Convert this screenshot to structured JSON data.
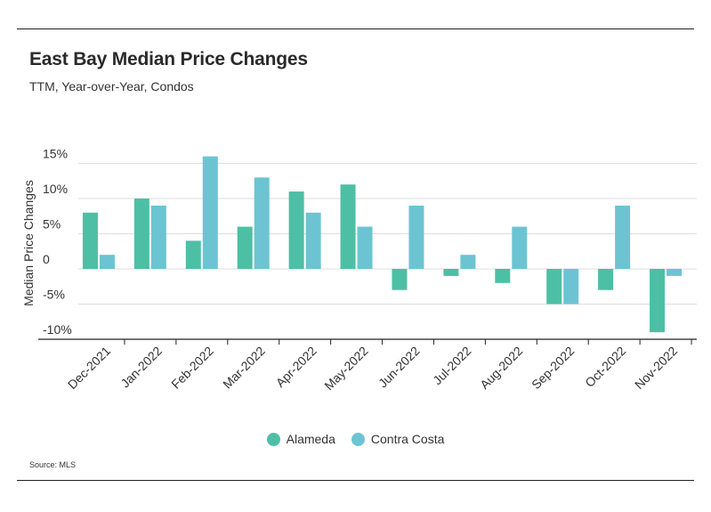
{
  "header": {
    "title": "East Bay Median Price Changes",
    "subtitle": "TTM, Year-over-Year, Condos"
  },
  "footer": {
    "source": "Source:  MLS"
  },
  "colors": {
    "alameda": "#4dbfa5",
    "contra_costa": "#6cc4d2",
    "grid": "#dddddd",
    "axis": "#222222"
  },
  "chart_data": {
    "type": "bar",
    "title": "East Bay Median Price Changes",
    "subtitle": "TTM, Year-over-Year, Condos",
    "xlabel": "",
    "ylabel": "Median Price Changes",
    "ylim": [
      -10,
      15
    ],
    "yticks": [
      15,
      10,
      5,
      0,
      -5,
      -10
    ],
    "ytick_labels": [
      "15%",
      "10%",
      "5%",
      "0",
      "-5%",
      "-10%"
    ],
    "grid": true,
    "legend_position": "bottom",
    "categories": [
      "Dec-2021",
      "Jan-2022",
      "Feb-2022",
      "Mar-2022",
      "Apr-2022",
      "May-2022",
      "Jun-2022",
      "Jul-2022",
      "Aug-2022",
      "Sep-2022",
      "Oct-2022",
      "Nov-2022"
    ],
    "series": [
      {
        "name": "Alameda",
        "values": [
          8,
          10,
          4,
          6,
          11,
          12,
          -3,
          -1,
          -2,
          -5,
          -3,
          -9
        ]
      },
      {
        "name": "Contra Costa",
        "values": [
          2,
          9,
          16,
          13,
          8,
          6,
          9,
          2,
          6,
          -5,
          9,
          -1
        ]
      }
    ]
  }
}
